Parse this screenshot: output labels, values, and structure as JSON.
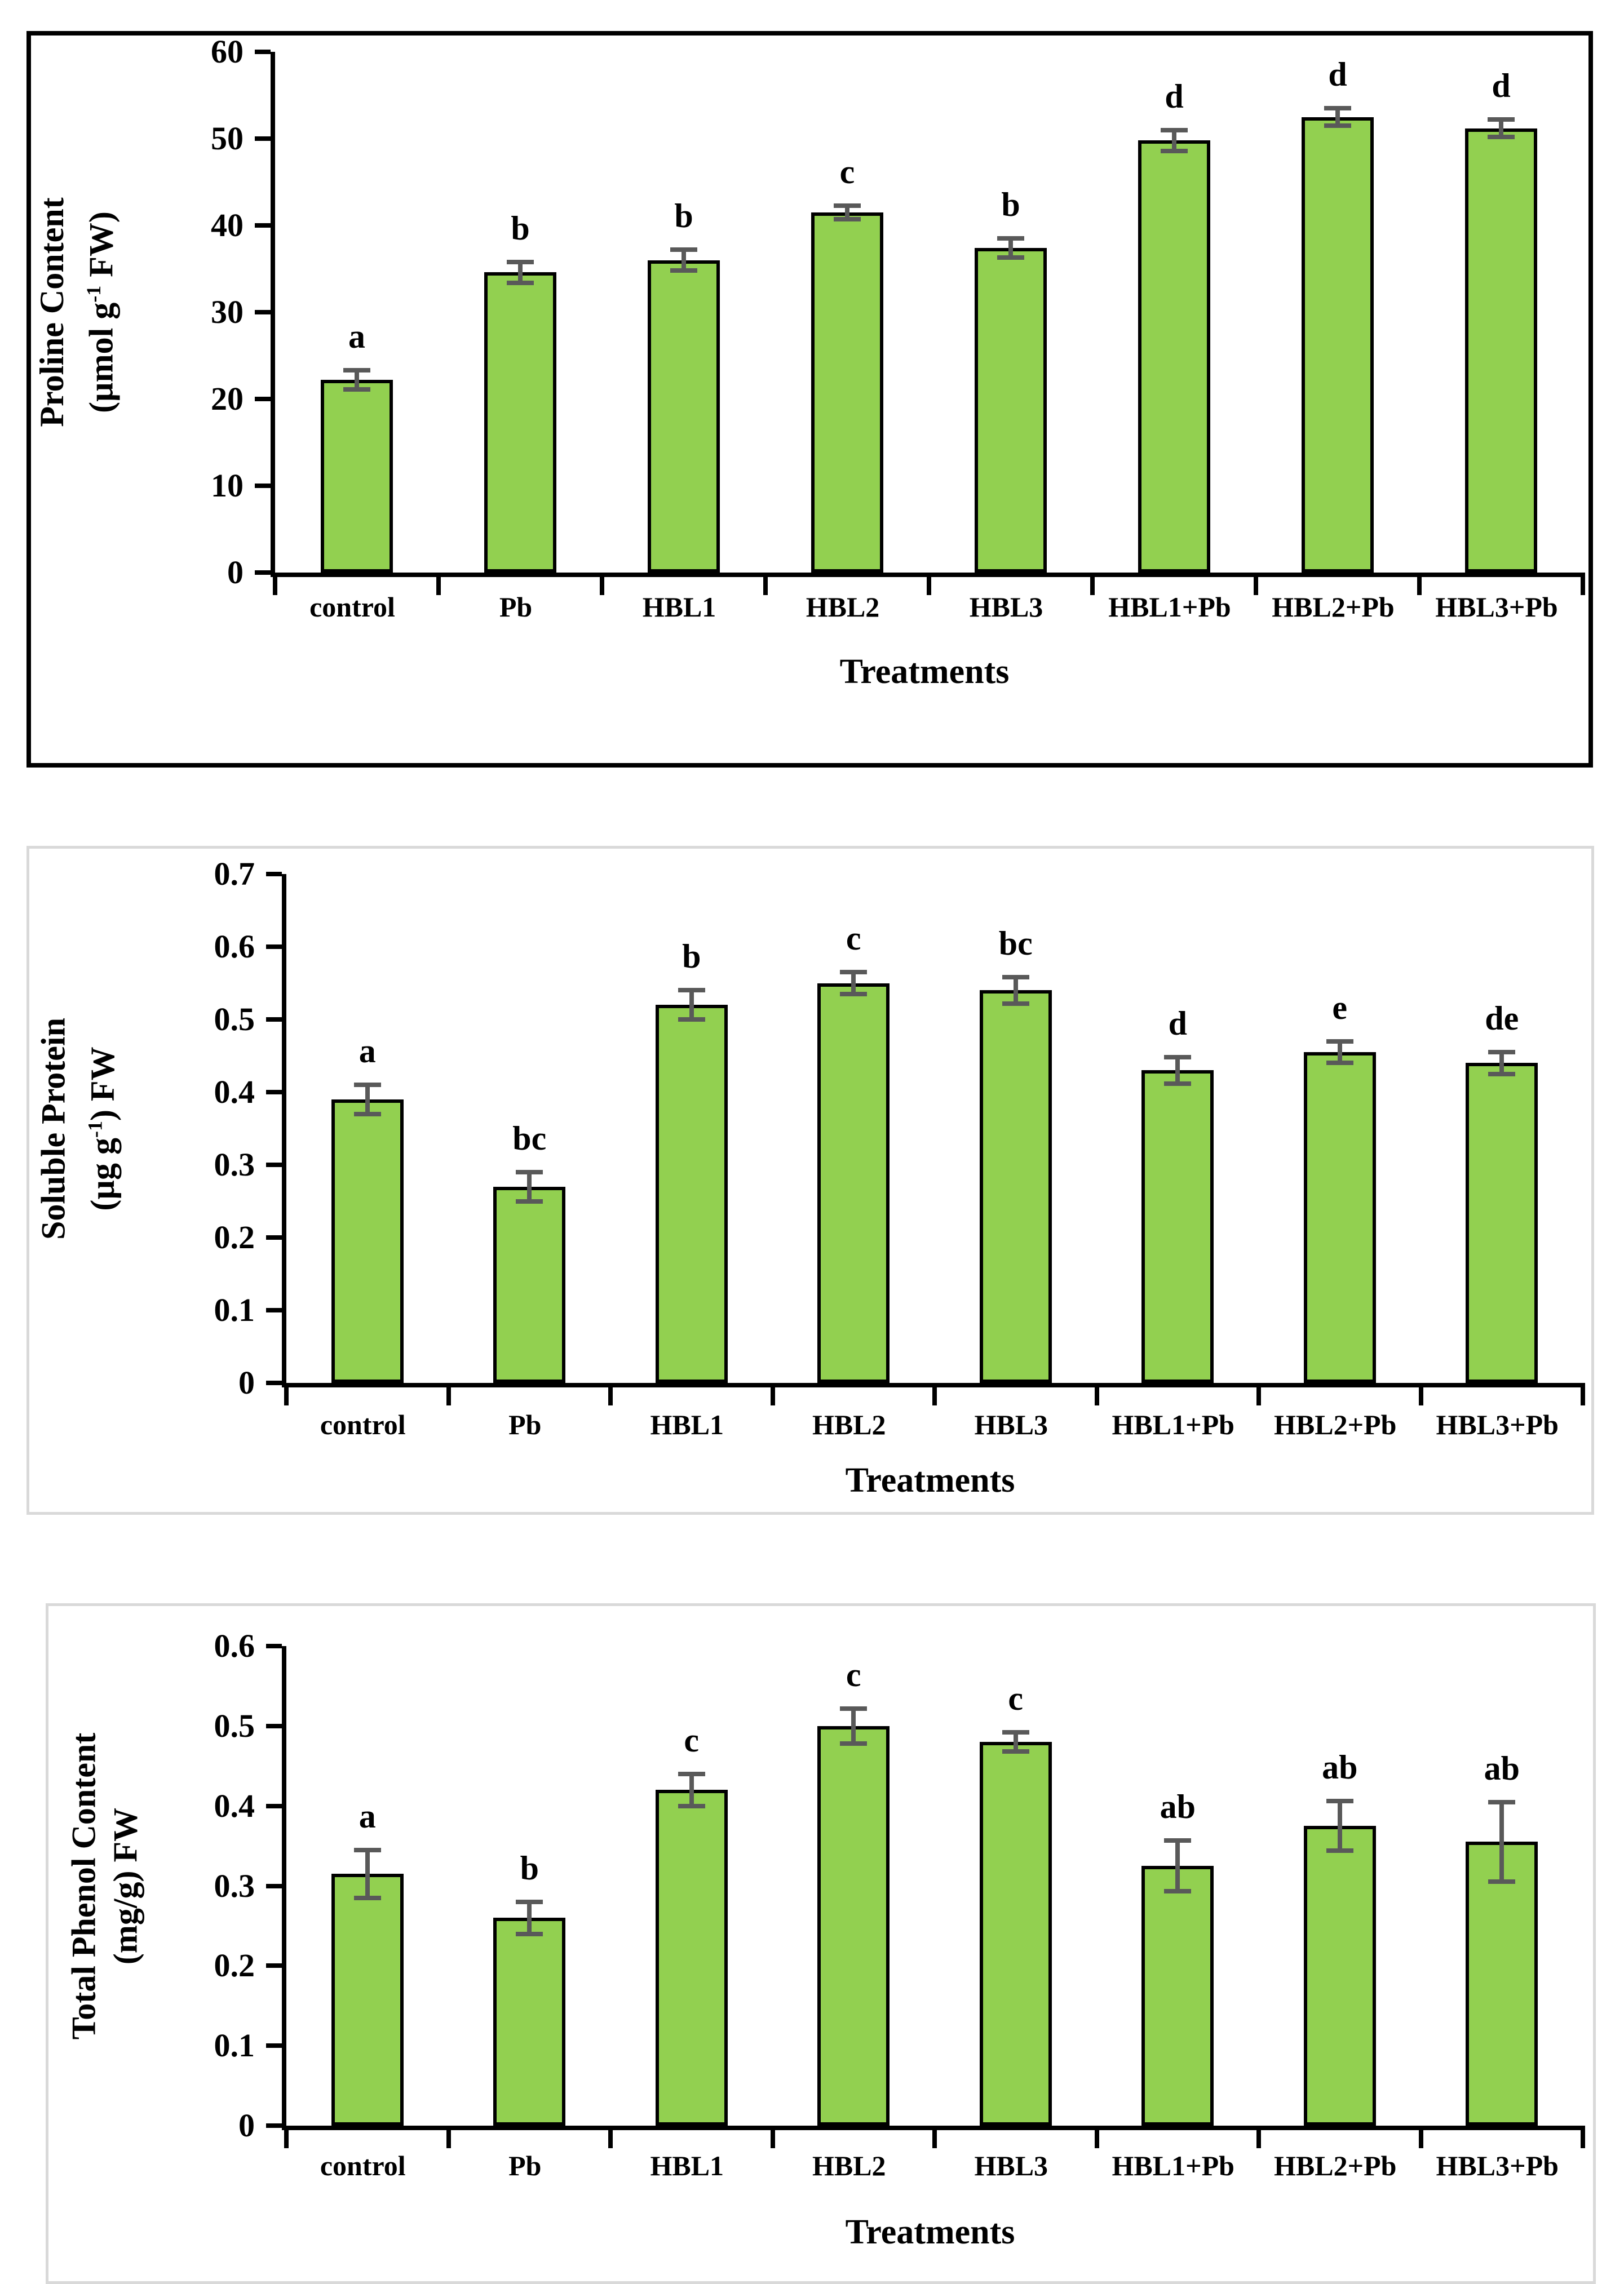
{
  "colors": {
    "bar_fill": "#92D050",
    "bar_border": "#000000",
    "error_bar": "#595959",
    "axis": "#000000",
    "panel1_border": "#000000",
    "panel23_border": "#D9D9D9",
    "text": "#000000",
    "background": "#FFFFFF"
  },
  "chart_data": [
    {
      "type": "bar",
      "id": "proline",
      "ylabel_lines": [
        [
          {
            "t": "Proline Content"
          }
        ],
        [
          {
            "t": "(µmol g"
          },
          {
            "t": "-1",
            "sup": true
          },
          {
            "t": " FW)"
          }
        ]
      ],
      "xlabel": "Treatments",
      "categories": [
        "control",
        "Pb",
        "HBL1",
        "HBL2",
        "HBL3",
        "HBL1+Pb",
        "HBL2+Pb",
        "HBL3+Pb"
      ],
      "values": [
        22.2,
        34.6,
        36.0,
        41.5,
        37.4,
        49.8,
        52.5,
        51.2
      ],
      "errors": [
        1.1,
        1.2,
        1.2,
        0.8,
        1.1,
        1.2,
        1.0,
        1.0
      ],
      "sig_letters": [
        "a",
        "b",
        "b",
        "c",
        "b",
        "d",
        "d",
        "d"
      ],
      "ylim": [
        0,
        60
      ],
      "ytick_step": 10,
      "ytick_labels": [
        "0",
        "10",
        "20",
        "30",
        "40",
        "50",
        "60"
      ],
      "grid": false,
      "legend": null
    },
    {
      "type": "bar",
      "id": "protein",
      "ylabel_lines": [
        [
          {
            "t": "Soluble Protein"
          }
        ],
        [
          {
            "t": "(µg g"
          },
          {
            "t": "-1",
            "sup": true
          },
          {
            "t": ") FW"
          }
        ]
      ],
      "xlabel": "Treatments",
      "categories": [
        "control",
        "Pb",
        "HBL1",
        "HBL2",
        "HBL3",
        "HBL1+Pb",
        "HBL2+Pb",
        "HBL3+Pb"
      ],
      "values": [
        0.39,
        0.27,
        0.52,
        0.55,
        0.54,
        0.43,
        0.455,
        0.44
      ],
      "errors": [
        0.02,
        0.02,
        0.02,
        0.015,
        0.018,
        0.018,
        0.015,
        0.015
      ],
      "sig_letters": [
        "a",
        "bc",
        "b",
        "c",
        "bc",
        "d",
        "e",
        "de"
      ],
      "ylim": [
        0,
        0.7
      ],
      "ytick_step": 0.1,
      "ytick_labels": [
        "0",
        "0.1",
        "0.2",
        "0.3",
        "0.4",
        "0.5",
        "0.6",
        "0.7"
      ],
      "grid": false,
      "legend": null
    },
    {
      "type": "bar",
      "id": "phenol",
      "ylabel_lines": [
        [
          {
            "t": "Total Phenol Content"
          }
        ],
        [
          {
            "t": "(mg/g) FW"
          }
        ]
      ],
      "xlabel": "Treatments",
      "categories": [
        "control",
        "Pb",
        "HBL1",
        "HBL2",
        "HBL3",
        "HBL1+Pb",
        "HBL2+Pb",
        "HBL3+Pb"
      ],
      "values": [
        0.315,
        0.26,
        0.42,
        0.5,
        0.48,
        0.325,
        0.375,
        0.355
      ],
      "errors": [
        0.03,
        0.02,
        0.02,
        0.022,
        0.012,
        0.032,
        0.031,
        0.05
      ],
      "sig_letters": [
        "a",
        "b",
        "c",
        "c",
        "c",
        "ab",
        "ab",
        "ab"
      ],
      "ylim": [
        0,
        0.6
      ],
      "ytick_step": 0.1,
      "ytick_labels": [
        "0",
        "0.1",
        "0.2",
        "0.3",
        "0.4",
        "0.5",
        "0.6"
      ],
      "grid": false,
      "legend": null
    }
  ]
}
